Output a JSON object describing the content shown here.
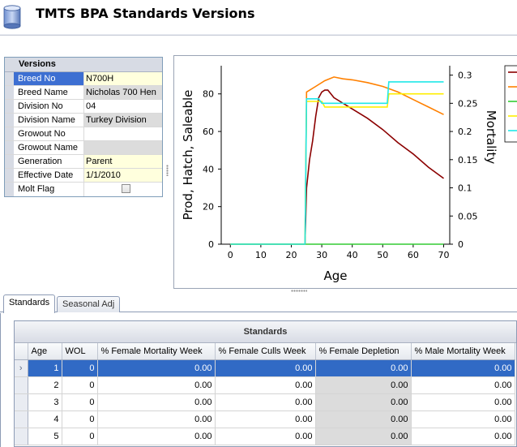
{
  "window": {
    "title": "TMTS BPA Standards Versions"
  },
  "versions": {
    "header": "Versions",
    "rows": [
      {
        "label": "Breed No",
        "value": "N700H",
        "style": "yellow",
        "selected": true
      },
      {
        "label": "Breed Name",
        "value": "Nicholas 700 Hen",
        "style": "gray"
      },
      {
        "label": "Division No",
        "value": "04",
        "style": "white"
      },
      {
        "label": "Division Name",
        "value": "Turkey Division",
        "style": "gray"
      },
      {
        "label": "Growout No",
        "value": "",
        "style": "white"
      },
      {
        "label": "Growout Name",
        "value": "",
        "style": "gray"
      },
      {
        "label": "Generation",
        "value": "Parent",
        "style": "yellow"
      },
      {
        "label": "Effective Date",
        "value": "1/1/2010",
        "style": "yellow"
      },
      {
        "label": "Molt Flag",
        "value": "",
        "style": "checkbox",
        "checked": false
      }
    ]
  },
  "chart_data": {
    "type": "line",
    "xlabel": "Age",
    "ylabel": "Prod, Hatch, Saleable",
    "y2label": "Mortality",
    "xlim": [
      -3,
      72
    ],
    "ylim": [
      0,
      95
    ],
    "y2lim": [
      0,
      0.3167
    ],
    "xticks": [
      "0",
      "10",
      "20",
      "30",
      "40",
      "50",
      "60",
      "70"
    ],
    "yticks": [
      "0",
      "20",
      "40",
      "60",
      "80"
    ],
    "y2ticks": [
      "0",
      "0.05",
      "0.1",
      "0.15",
      "0.2",
      "0.25",
      "0.3"
    ],
    "grid": false,
    "legend": "right (partially visible, labels cut off)",
    "series": [
      {
        "color": "#8b0000",
        "axis": "left",
        "x": [
          0,
          24.5,
          25,
          26,
          27,
          28,
          29,
          30,
          31,
          32,
          33,
          34,
          36,
          40,
          45,
          50,
          55,
          60,
          65,
          70
        ],
        "y": [
          0,
          0,
          30,
          45,
          55,
          68,
          78,
          81,
          82,
          82,
          80,
          78,
          76,
          72,
          67,
          61,
          54,
          48,
          41,
          35
        ]
      },
      {
        "color": "#ff8000",
        "axis": "left",
        "x": [
          0,
          24.5,
          25,
          28,
          31,
          34,
          37,
          40,
          45,
          50,
          55,
          60,
          65,
          70
        ],
        "y": [
          0,
          0,
          81,
          84,
          87,
          89,
          88,
          87.5,
          86,
          84,
          81,
          77,
          73,
          69
        ]
      },
      {
        "color": "#33cc33",
        "axis": "right",
        "x": [
          0,
          70
        ],
        "y": [
          0,
          0
        ]
      },
      {
        "color": "#ffee00",
        "axis": "left",
        "x": [
          0,
          24.5,
          25,
          30,
          31,
          40,
          51.5,
          52,
          70
        ],
        "y": [
          0,
          0,
          76,
          76,
          73,
          73,
          73,
          80,
          80
        ]
      },
      {
        "color": "#20e8e8",
        "axis": "right",
        "x": [
          0,
          24.5,
          25,
          29,
          30,
          40,
          51.5,
          52,
          70
        ],
        "y": [
          0,
          0,
          0.258,
          0.258,
          0.25,
          0.25,
          0.25,
          0.288,
          0.288
        ]
      }
    ]
  },
  "tabs": [
    {
      "label": "Standards",
      "active": true
    },
    {
      "label": "Seasonal Adj",
      "active": false
    }
  ],
  "grid": {
    "band_title": "Standards",
    "columns": [
      "Age",
      "WOL",
      "% Female Mortality Week",
      "% Female Culls Week",
      "% Female Depletion",
      "% Male Mortality Week"
    ],
    "rows": [
      {
        "selector": "›",
        "cells": [
          "1",
          "0",
          "0.00",
          "0.00",
          "0.00",
          "0.00"
        ],
        "active": true
      },
      {
        "selector": "",
        "cells": [
          "2",
          "0",
          "0.00",
          "0.00",
          "0.00",
          "0.00"
        ]
      },
      {
        "selector": "",
        "cells": [
          "3",
          "0",
          "0.00",
          "0.00",
          "0.00",
          "0.00"
        ]
      },
      {
        "selector": "",
        "cells": [
          "4",
          "0",
          "0.00",
          "0.00",
          "0.00",
          "0.00"
        ]
      },
      {
        "selector": "",
        "cells": [
          "5",
          "0",
          "0.00",
          "0.00",
          "0.00",
          "0.00"
        ]
      }
    ]
  }
}
